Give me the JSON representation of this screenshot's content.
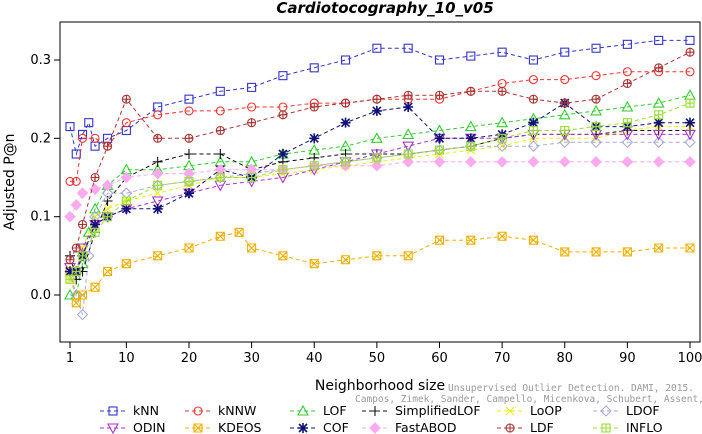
{
  "chart_data": {
    "type": "line",
    "title": "Cardiotocography_10_v05",
    "xlabel": "Neighborhood size",
    "ylabel": "Adjusted P@n",
    "xlim": [
      1,
      100
    ],
    "ylim": [
      -0.05,
      0.35
    ],
    "x_ticks": [
      1,
      10,
      20,
      30,
      40,
      50,
      60,
      70,
      80,
      90,
      100
    ],
    "y_ticks": [
      0.0,
      0.1,
      0.2,
      0.3
    ],
    "y_tick_labels": [
      "0.0",
      "0.1",
      "0.2",
      "0.3"
    ],
    "legend_position": "bottom",
    "series": [
      {
        "name": "kNN",
        "color": "#3333cc",
        "marker": "square",
        "dash": "4,3",
        "points": [
          [
            1,
            0.215
          ],
          [
            2,
            0.18
          ],
          [
            3,
            0.205
          ],
          [
            4,
            0.22
          ],
          [
            5,
            0.19
          ],
          [
            7,
            0.2
          ],
          [
            10,
            0.21
          ],
          [
            15,
            0.24
          ],
          [
            20,
            0.25
          ],
          [
            25,
            0.26
          ],
          [
            30,
            0.265
          ],
          [
            35,
            0.28
          ],
          [
            40,
            0.29
          ],
          [
            45,
            0.3
          ],
          [
            50,
            0.315
          ],
          [
            55,
            0.315
          ],
          [
            60,
            0.3
          ],
          [
            65,
            0.305
          ],
          [
            70,
            0.31
          ],
          [
            75,
            0.3
          ],
          [
            80,
            0.31
          ],
          [
            85,
            0.315
          ],
          [
            90,
            0.32
          ],
          [
            95,
            0.325
          ],
          [
            100,
            0.325
          ]
        ]
      },
      {
        "name": "kNNW",
        "color": "#ee3333",
        "marker": "circle",
        "dash": "4,3",
        "points": [
          [
            1,
            0.145
          ],
          [
            2,
            0.145
          ],
          [
            3,
            0.2
          ],
          [
            5,
            0.2
          ],
          [
            7,
            0.19
          ],
          [
            10,
            0.22
          ],
          [
            15,
            0.23
          ],
          [
            20,
            0.235
          ],
          [
            25,
            0.235
          ],
          [
            30,
            0.24
          ],
          [
            35,
            0.24
          ],
          [
            40,
            0.245
          ],
          [
            45,
            0.245
          ],
          [
            50,
            0.25
          ],
          [
            55,
            0.25
          ],
          [
            60,
            0.25
          ],
          [
            65,
            0.26
          ],
          [
            70,
            0.27
          ],
          [
            75,
            0.275
          ],
          [
            80,
            0.275
          ],
          [
            85,
            0.28
          ],
          [
            90,
            0.285
          ],
          [
            95,
            0.285
          ],
          [
            100,
            0.285
          ]
        ]
      },
      {
        "name": "LOF",
        "color": "#33cc33",
        "marker": "triangle-up",
        "dash": "4,3",
        "points": [
          [
            1,
            0.0
          ],
          [
            2,
            0.0
          ],
          [
            3,
            0.04
          ],
          [
            4,
            0.08
          ],
          [
            5,
            0.11
          ],
          [
            7,
            0.14
          ],
          [
            10,
            0.16
          ],
          [
            15,
            0.16
          ],
          [
            20,
            0.165
          ],
          [
            25,
            0.17
          ],
          [
            30,
            0.17
          ],
          [
            35,
            0.18
          ],
          [
            40,
            0.185
          ],
          [
            45,
            0.19
          ],
          [
            50,
            0.2
          ],
          [
            55,
            0.205
          ],
          [
            60,
            0.21
          ],
          [
            65,
            0.215
          ],
          [
            70,
            0.22
          ],
          [
            75,
            0.225
          ],
          [
            80,
            0.23
          ],
          [
            85,
            0.235
          ],
          [
            90,
            0.24
          ],
          [
            95,
            0.245
          ],
          [
            100,
            0.255
          ]
        ]
      },
      {
        "name": "SimplifiedLOF",
        "color": "#111111",
        "marker": "plus",
        "dash": "4,3",
        "points": [
          [
            1,
            0.05
          ],
          [
            2,
            0.02
          ],
          [
            3,
            0.03
          ],
          [
            5,
            0.08
          ],
          [
            7,
            0.12
          ],
          [
            10,
            0.15
          ],
          [
            15,
            0.17
          ],
          [
            20,
            0.18
          ],
          [
            25,
            0.18
          ],
          [
            30,
            0.16
          ],
          [
            35,
            0.17
          ],
          [
            40,
            0.175
          ],
          [
            45,
            0.18
          ],
          [
            50,
            0.18
          ],
          [
            55,
            0.18
          ],
          [
            60,
            0.185
          ],
          [
            65,
            0.19
          ],
          [
            70,
            0.2
          ],
          [
            75,
            0.205
          ],
          [
            80,
            0.205
          ],
          [
            85,
            0.205
          ],
          [
            90,
            0.21
          ],
          [
            95,
            0.21
          ],
          [
            100,
            0.21
          ]
        ]
      },
      {
        "name": "LoOP",
        "color": "#eeee11",
        "marker": "cross",
        "dash": "4,3",
        "points": [
          [
            1,
            0.02
          ],
          [
            2,
            0.03
          ],
          [
            3,
            0.06
          ],
          [
            5,
            0.1
          ],
          [
            7,
            0.11
          ],
          [
            10,
            0.12
          ],
          [
            15,
            0.13
          ],
          [
            20,
            0.14
          ],
          [
            25,
            0.15
          ],
          [
            30,
            0.15
          ],
          [
            35,
            0.155
          ],
          [
            40,
            0.16
          ],
          [
            45,
            0.165
          ],
          [
            50,
            0.17
          ],
          [
            55,
            0.175
          ],
          [
            60,
            0.18
          ],
          [
            65,
            0.185
          ],
          [
            70,
            0.19
          ],
          [
            75,
            0.2
          ],
          [
            80,
            0.2
          ],
          [
            85,
            0.2
          ],
          [
            90,
            0.21
          ],
          [
            95,
            0.215
          ],
          [
            100,
            0.215
          ]
        ]
      },
      {
        "name": "LDOF",
        "color": "#aaaadd",
        "marker": "diamond",
        "dash": "4,3",
        "points": [
          [
            1,
            0.03
          ],
          [
            2,
            0.0
          ],
          [
            3,
            -0.025
          ],
          [
            4,
            0.05
          ],
          [
            5,
            0.1
          ],
          [
            7,
            0.13
          ],
          [
            10,
            0.13
          ],
          [
            15,
            0.14
          ],
          [
            20,
            0.145
          ],
          [
            25,
            0.15
          ],
          [
            30,
            0.155
          ],
          [
            35,
            0.16
          ],
          [
            40,
            0.165
          ],
          [
            45,
            0.17
          ],
          [
            50,
            0.175
          ],
          [
            55,
            0.18
          ],
          [
            60,
            0.185
          ],
          [
            65,
            0.19
          ],
          [
            70,
            0.19
          ],
          [
            75,
            0.19
          ],
          [
            80,
            0.195
          ],
          [
            85,
            0.195
          ],
          [
            90,
            0.195
          ],
          [
            95,
            0.195
          ],
          [
            100,
            0.195
          ]
        ]
      },
      {
        "name": "ODIN",
        "color": "#aa33cc",
        "marker": "triangle-down",
        "dash": "4,3",
        "points": [
          [
            1,
            0.035
          ],
          [
            2,
            0.03
          ],
          [
            3,
            0.06
          ],
          [
            5,
            0.09
          ],
          [
            7,
            0.1
          ],
          [
            10,
            0.11
          ],
          [
            15,
            0.12
          ],
          [
            20,
            0.13
          ],
          [
            25,
            0.14
          ],
          [
            30,
            0.145
          ],
          [
            35,
            0.15
          ],
          [
            40,
            0.16
          ],
          [
            45,
            0.17
          ],
          [
            50,
            0.18
          ],
          [
            55,
            0.19
          ],
          [
            60,
            0.2
          ],
          [
            65,
            0.2
          ],
          [
            70,
            0.2
          ],
          [
            75,
            0.205
          ],
          [
            80,
            0.205
          ],
          [
            85,
            0.205
          ],
          [
            90,
            0.205
          ],
          [
            95,
            0.205
          ],
          [
            100,
            0.205
          ]
        ]
      },
      {
        "name": "KDEOS",
        "color": "#f0b000",
        "marker": "square-x",
        "dash": "4,3",
        "points": [
          [
            1,
            0.03
          ],
          [
            2,
            -0.01
          ],
          [
            3,
            0.0
          ],
          [
            5,
            0.01
          ],
          [
            7,
            0.03
          ],
          [
            10,
            0.04
          ],
          [
            15,
            0.05
          ],
          [
            20,
            0.06
          ],
          [
            25,
            0.075
          ],
          [
            28,
            0.08
          ],
          [
            30,
            0.06
          ],
          [
            35,
            0.05
          ],
          [
            40,
            0.04
          ],
          [
            45,
            0.045
          ],
          [
            50,
            0.05
          ],
          [
            55,
            0.05
          ],
          [
            60,
            0.07
          ],
          [
            65,
            0.07
          ],
          [
            70,
            0.075
          ],
          [
            75,
            0.07
          ],
          [
            80,
            0.055
          ],
          [
            85,
            0.055
          ],
          [
            90,
            0.055
          ],
          [
            95,
            0.06
          ],
          [
            100,
            0.06
          ]
        ]
      },
      {
        "name": "COF",
        "color": "#111177",
        "marker": "asterisk",
        "dash": "4,3",
        "points": [
          [
            1,
            0.03
          ],
          [
            2,
            0.03
          ],
          [
            3,
            0.05
          ],
          [
            5,
            0.09
          ],
          [
            7,
            0.1
          ],
          [
            10,
            0.11
          ],
          [
            15,
            0.11
          ],
          [
            20,
            0.13
          ],
          [
            25,
            0.16
          ],
          [
            30,
            0.15
          ],
          [
            35,
            0.18
          ],
          [
            40,
            0.2
          ],
          [
            45,
            0.22
          ],
          [
            50,
            0.235
          ],
          [
            55,
            0.24
          ],
          [
            60,
            0.2
          ],
          [
            65,
            0.2
          ],
          [
            70,
            0.205
          ],
          [
            75,
            0.22
          ],
          [
            80,
            0.245
          ],
          [
            85,
            0.215
          ],
          [
            90,
            0.215
          ],
          [
            95,
            0.22
          ],
          [
            100,
            0.22
          ]
        ]
      },
      {
        "name": "FastABOD",
        "color": "#ffaaee",
        "marker": "diamond-filled",
        "dash": "4,3",
        "points": [
          [
            1,
            0.1
          ],
          [
            2,
            0.115
          ],
          [
            3,
            0.13
          ],
          [
            5,
            0.135
          ],
          [
            7,
            0.14
          ],
          [
            10,
            0.15
          ],
          [
            15,
            0.155
          ],
          [
            20,
            0.155
          ],
          [
            25,
            0.16
          ],
          [
            30,
            0.16
          ],
          [
            35,
            0.16
          ],
          [
            40,
            0.165
          ],
          [
            45,
            0.165
          ],
          [
            50,
            0.165
          ],
          [
            55,
            0.17
          ],
          [
            60,
            0.17
          ],
          [
            65,
            0.17
          ],
          [
            70,
            0.17
          ],
          [
            75,
            0.17
          ],
          [
            80,
            0.17
          ],
          [
            85,
            0.17
          ],
          [
            90,
            0.17
          ],
          [
            95,
            0.17
          ],
          [
            100,
            0.17
          ]
        ]
      },
      {
        "name": "LDF",
        "color": "#aa3333",
        "marker": "circle-plus",
        "dash": "4,3",
        "points": [
          [
            1,
            0.045
          ],
          [
            2,
            0.06
          ],
          [
            3,
            0.09
          ],
          [
            5,
            0.15
          ],
          [
            7,
            0.19
          ],
          [
            10,
            0.25
          ],
          [
            15,
            0.2
          ],
          [
            20,
            0.2
          ],
          [
            25,
            0.21
          ],
          [
            30,
            0.22
          ],
          [
            35,
            0.23
          ],
          [
            40,
            0.24
          ],
          [
            45,
            0.245
          ],
          [
            50,
            0.25
          ],
          [
            55,
            0.255
          ],
          [
            60,
            0.255
          ],
          [
            65,
            0.26
          ],
          [
            70,
            0.26
          ],
          [
            75,
            0.25
          ],
          [
            80,
            0.245
          ],
          [
            85,
            0.25
          ],
          [
            90,
            0.27
          ],
          [
            95,
            0.29
          ],
          [
            100,
            0.31
          ]
        ]
      },
      {
        "name": "INFLO",
        "color": "#99dd33",
        "marker": "square-plus",
        "dash": "4,3",
        "points": [
          [
            1,
            0.02
          ],
          [
            2,
            0.03
          ],
          [
            3,
            0.05
          ],
          [
            5,
            0.08
          ],
          [
            7,
            0.1
          ],
          [
            10,
            0.12
          ],
          [
            15,
            0.14
          ],
          [
            20,
            0.145
          ],
          [
            25,
            0.15
          ],
          [
            30,
            0.15
          ],
          [
            35,
            0.16
          ],
          [
            40,
            0.165
          ],
          [
            45,
            0.17
          ],
          [
            50,
            0.175
          ],
          [
            55,
            0.18
          ],
          [
            60,
            0.185
          ],
          [
            65,
            0.19
          ],
          [
            70,
            0.2
          ],
          [
            75,
            0.21
          ],
          [
            80,
            0.21
          ],
          [
            85,
            0.215
          ],
          [
            90,
            0.22
          ],
          [
            95,
            0.23
          ],
          [
            100,
            0.245
          ]
        ]
      }
    ]
  },
  "watermark": {
    "line1": "Unsupervised Outlier Detection. DAMI, 2015.",
    "line2": "Campos, Zimek, Sander, Campello, Micenkova, Schubert, Assent, Houle"
  }
}
